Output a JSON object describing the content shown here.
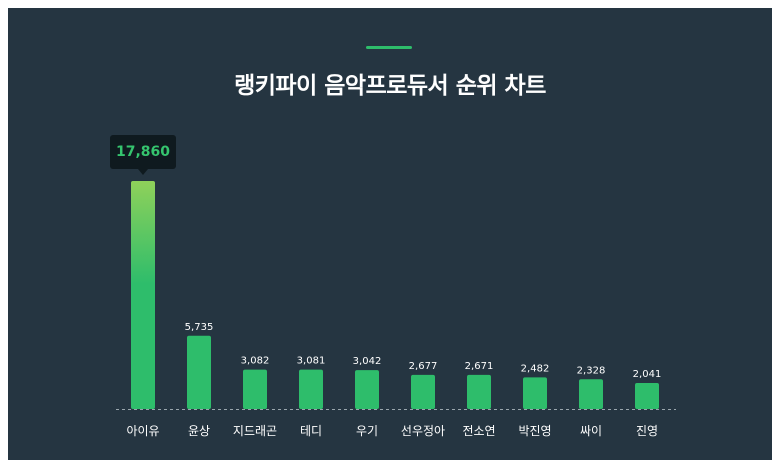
{
  "title": "랭키파이 음악프로듀서 순위 차트",
  "colors": {
    "background": "#253541",
    "bar": "#2ebd6b",
    "bar_top_highlight": "#8fd15a",
    "accent": "#2ebd6b",
    "tooltip_bg": "#0f1a1f",
    "tooltip_text": "#35c46e",
    "label_text": "#ffffff",
    "baseline": "#9aa6ad"
  },
  "chart_data": {
    "type": "bar",
    "categories": [
      "아이유",
      "윤상",
      "지드래곤",
      "테디",
      "우기",
      "선우정아",
      "전소연",
      "박진영",
      "싸이",
      "진영"
    ],
    "values": [
      17860,
      5735,
      3082,
      3081,
      3042,
      2677,
      2671,
      2482,
      2328,
      2041
    ],
    "value_labels": [
      "17,860",
      "5,735",
      "3,082",
      "3,081",
      "3,042",
      "2,677",
      "2,671",
      "2,482",
      "2,328",
      "2,041"
    ],
    "ylim": [
      0,
      17860
    ],
    "grid": false,
    "highlighted_index": 0
  }
}
